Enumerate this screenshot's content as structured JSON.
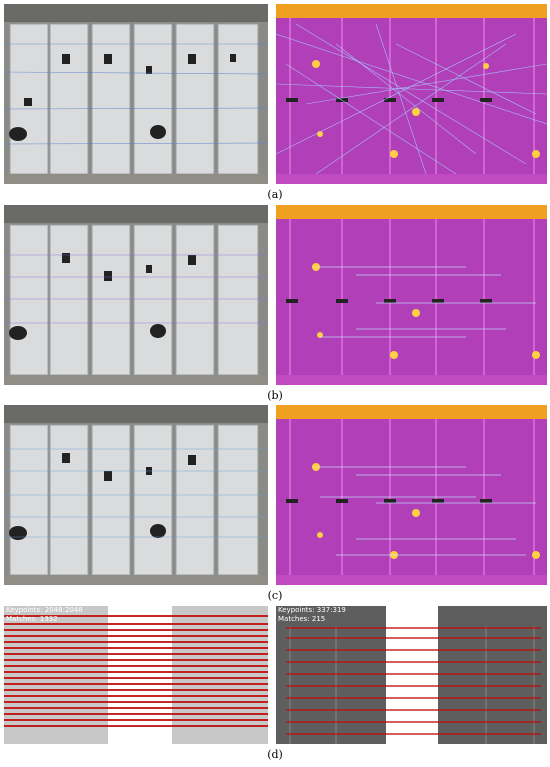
{
  "figure": {
    "captions": [
      "(a)",
      "(b)",
      "(c)",
      "(d)"
    ],
    "panel_d": {
      "left_keypoints": "Keypoints: 2048:2048",
      "left_matches": "Matches: 1332",
      "right_keypoints": "Keypoints: 337:319",
      "right_matches": "Matches: 215"
    }
  }
}
